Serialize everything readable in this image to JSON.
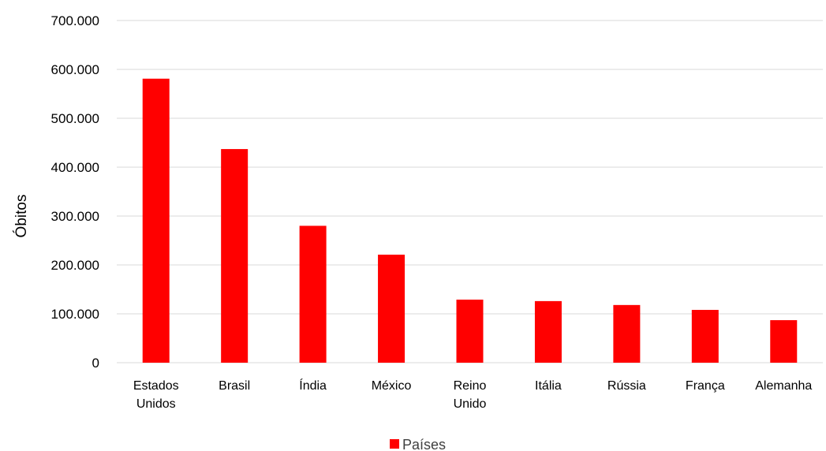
{
  "chart_data": {
    "type": "bar",
    "categories": [
      [
        "Estados",
        "Unidos"
      ],
      [
        "Brasil"
      ],
      [
        "Índia"
      ],
      [
        "México"
      ],
      [
        "Reino",
        "Unido"
      ],
      [
        "Itália"
      ],
      [
        "Rússia"
      ],
      [
        "França"
      ],
      [
        "Alemanha"
      ]
    ],
    "series": [
      {
        "name": "Países",
        "values": [
          581000,
          437000,
          280000,
          221000,
          129000,
          126000,
          118000,
          108000,
          87000
        ]
      }
    ],
    "ylabel": "Óbitos",
    "ylim": [
      0,
      700000
    ],
    "yticks": [
      0,
      100000,
      200000,
      300000,
      400000,
      500000,
      600000,
      700000
    ],
    "ytick_labels": [
      "0",
      "100.000",
      "200.000",
      "300.000",
      "400.000",
      "500.000",
      "600.000",
      "700.000"
    ],
    "grid": true,
    "legend_position": "bottom",
    "colors": {
      "bar": "#ff0000",
      "grid": "#d9d9d9"
    }
  }
}
